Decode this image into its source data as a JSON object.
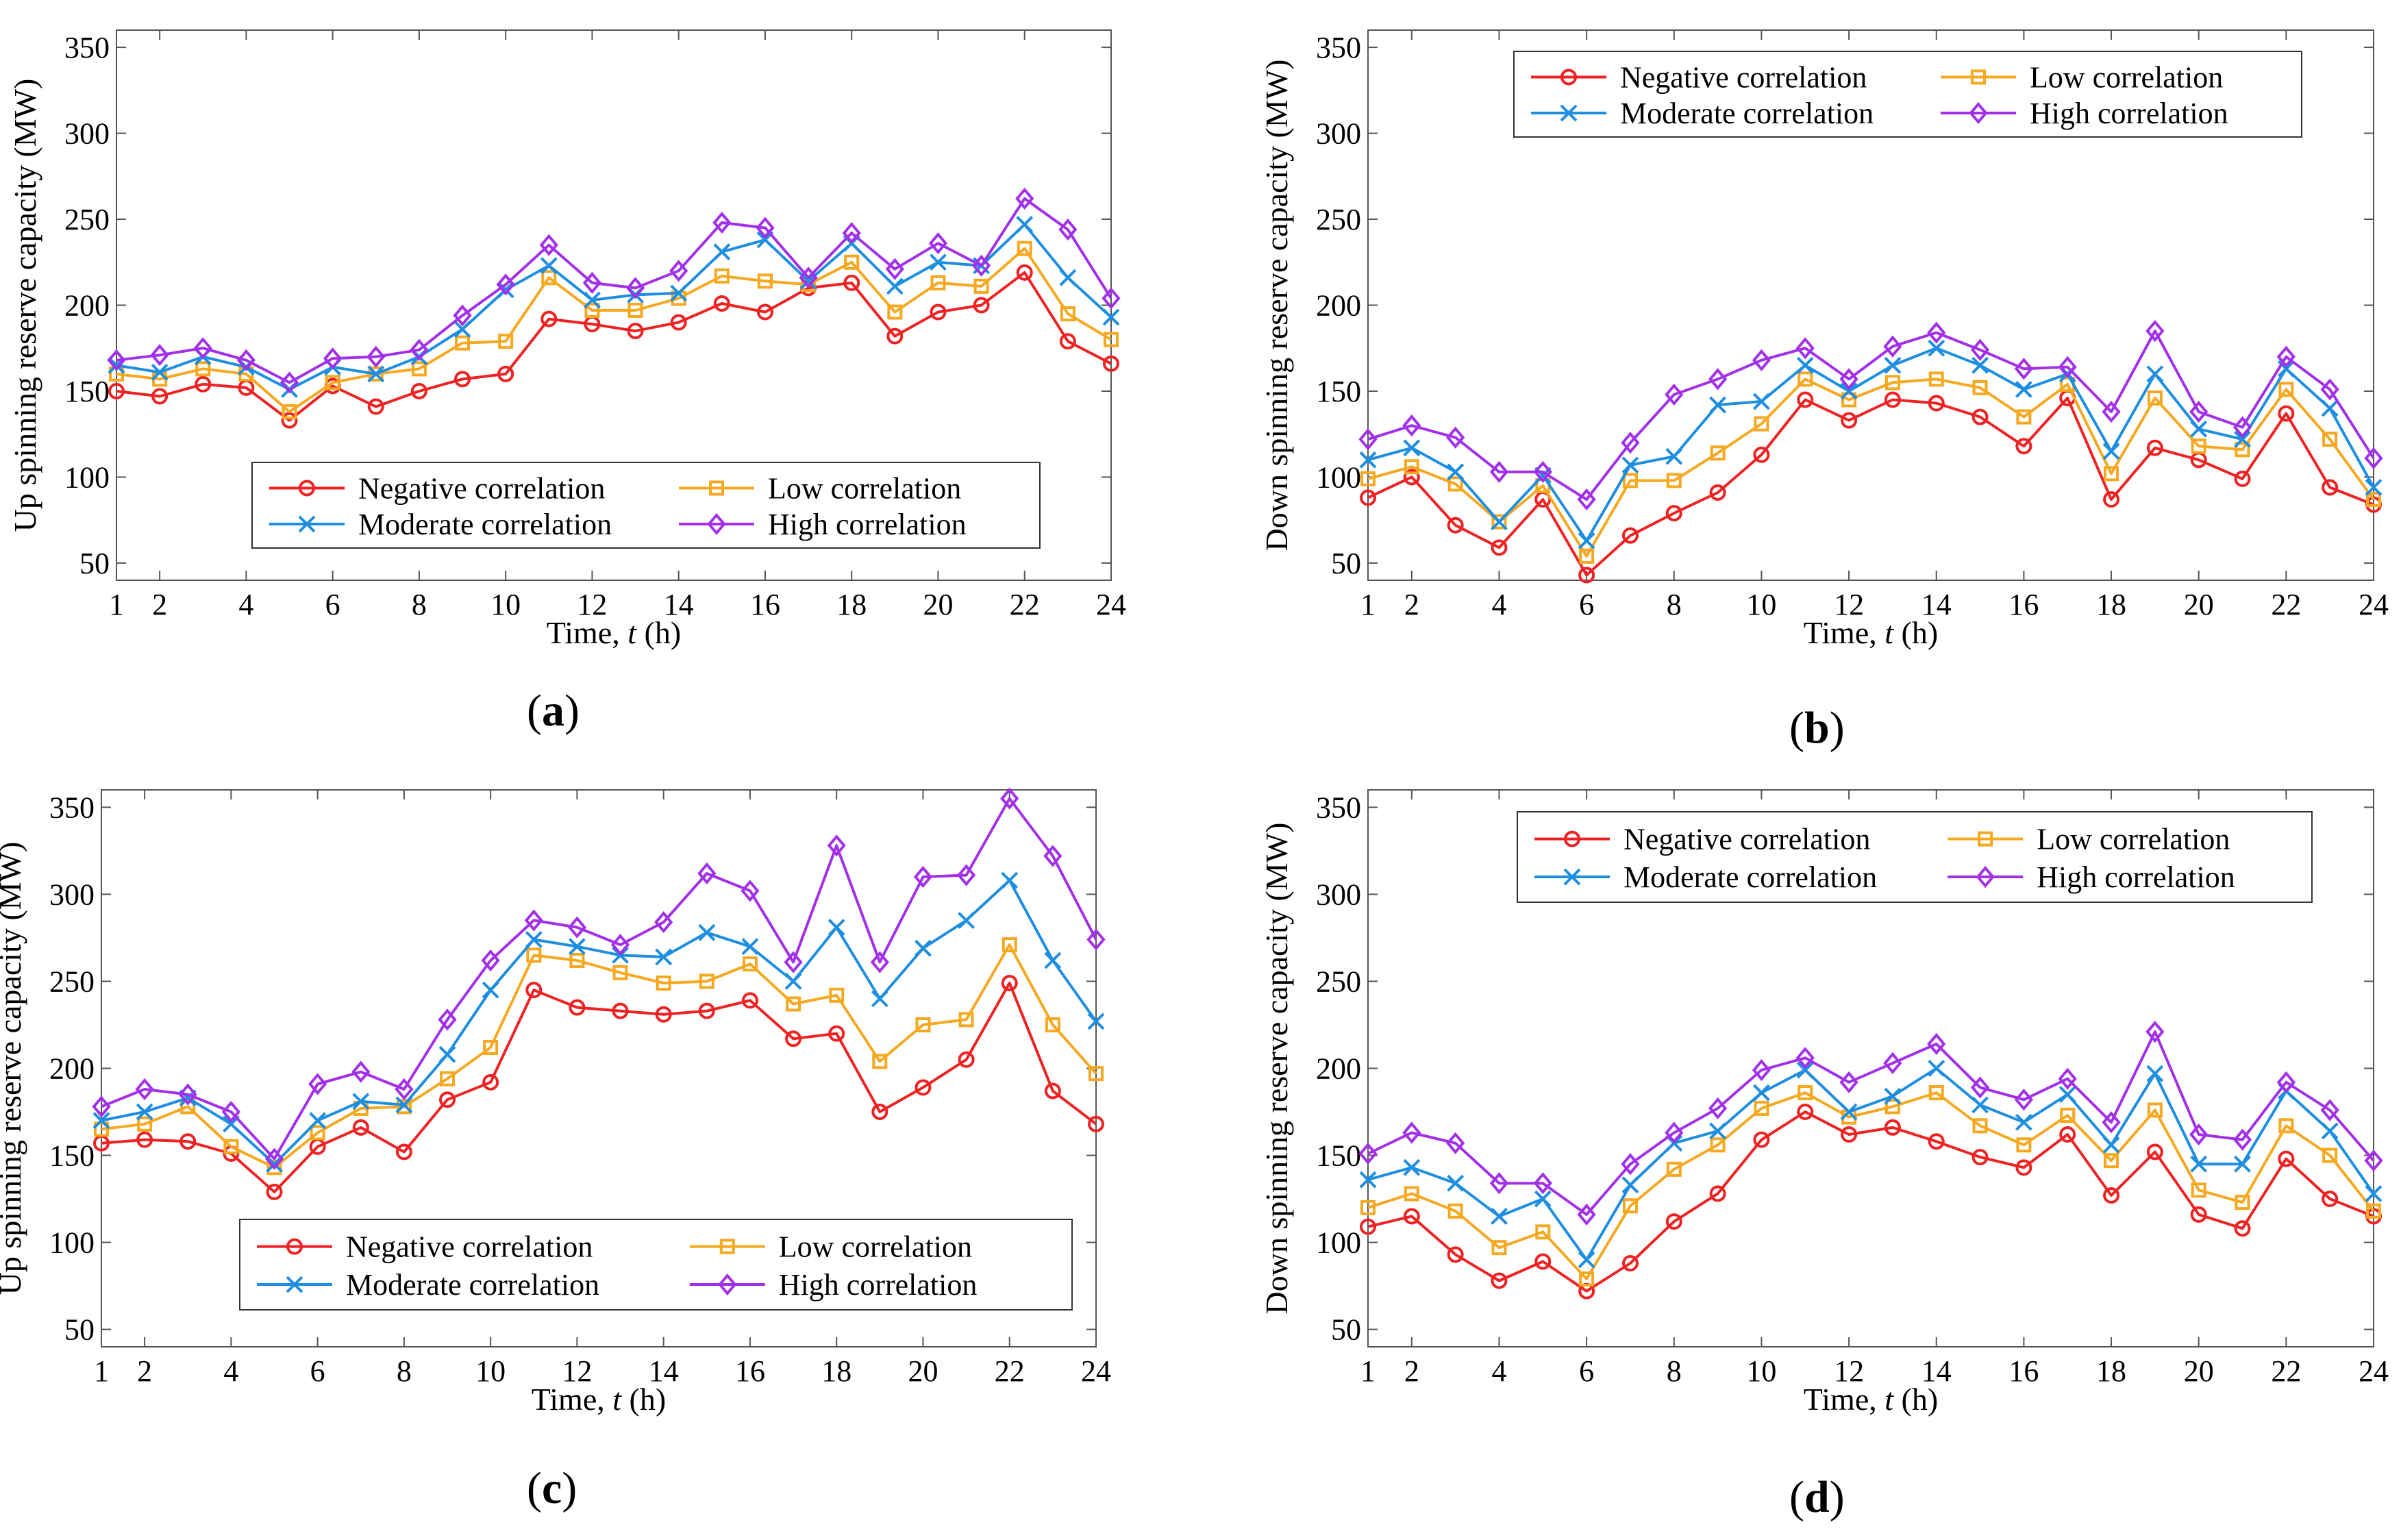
{
  "figure": {
    "panel_labels": [
      {
        "open": "(",
        "letter": "a",
        "close": ")"
      },
      {
        "open": "(",
        "letter": "b",
        "close": ")"
      },
      {
        "open": "(",
        "letter": "c",
        "close": ")"
      },
      {
        "open": "(",
        "letter": "d",
        "close": ")"
      }
    ]
  },
  "series_style": [
    {
      "name": "Negative correlation",
      "color": "#ee2222",
      "marker": "circle"
    },
    {
      "name": "Low correlation",
      "color": "#f5a820",
      "marker": "square"
    },
    {
      "name": "Moderate correlation",
      "color": "#1e8ee0",
      "marker": "x"
    },
    {
      "name": "High correlation",
      "color": "#a230e8",
      "marker": "diamond"
    }
  ],
  "chart_data": [
    {
      "type": "line",
      "panel": "a",
      "xlabel": "Time, t (h)",
      "ylabel": "Up spinning reserve capacity (MW)",
      "xlim": [
        1,
        24
      ],
      "ylim": [
        40,
        360
      ],
      "xticks": [
        1,
        2,
        4,
        6,
        8,
        10,
        12,
        14,
        16,
        18,
        20,
        22,
        24
      ],
      "yticks": [
        50,
        100,
        150,
        200,
        250,
        300,
        350
      ],
      "legend_position": "bottom-right",
      "x": [
        1,
        2,
        3,
        4,
        5,
        6,
        7,
        8,
        9,
        10,
        11,
        12,
        13,
        14,
        15,
        16,
        17,
        18,
        19,
        20,
        21,
        22,
        23,
        24
      ],
      "series": [
        {
          "name": "Negative correlation",
          "values": [
            150,
            147,
            154,
            152,
            133,
            153,
            141,
            150,
            157,
            160,
            192,
            189,
            185,
            190,
            201,
            196,
            210,
            213,
            182,
            196,
            200,
            219,
            179,
            166
          ]
        },
        {
          "name": "Low correlation",
          "values": [
            160,
            157,
            163,
            160,
            138,
            155,
            160,
            163,
            178,
            179,
            216,
            197,
            197,
            204,
            217,
            214,
            212,
            225,
            196,
            213,
            211,
            233,
            195,
            180
          ]
        },
        {
          "name": "Moderate correlation",
          "values": [
            165,
            161,
            170,
            164,
            151,
            164,
            160,
            170,
            186,
            209,
            223,
            203,
            206,
            207,
            231,
            238,
            214,
            236,
            211,
            225,
            223,
            247,
            216,
            193
          ]
        },
        {
          "name": "High correlation",
          "values": [
            168,
            171,
            175,
            168,
            155,
            169,
            170,
            174,
            194,
            212,
            235,
            213,
            210,
            220,
            248,
            245,
            216,
            242,
            221,
            236,
            223,
            262,
            244,
            204
          ]
        }
      ]
    },
    {
      "type": "line",
      "panel": "b",
      "xlabel": "Time, t (h)",
      "ylabel": "Down spinning reserve capacity (MW)",
      "xlim": [
        1,
        24
      ],
      "ylim": [
        40,
        360
      ],
      "xticks": [
        1,
        2,
        4,
        6,
        8,
        10,
        12,
        14,
        16,
        18,
        20,
        22,
        24
      ],
      "yticks": [
        50,
        100,
        150,
        200,
        250,
        300,
        350
      ],
      "legend_position": "top-right",
      "x": [
        1,
        2,
        3,
        4,
        5,
        6,
        7,
        8,
        9,
        10,
        11,
        12,
        13,
        14,
        15,
        16,
        17,
        18,
        19,
        20,
        21,
        22,
        23,
        24
      ],
      "series": [
        {
          "name": "Negative correlation",
          "values": [
            88,
            100,
            72,
            59,
            87,
            43,
            66,
            79,
            91,
            113,
            145,
            133,
            145,
            143,
            135,
            118,
            146,
            87,
            117,
            110,
            99,
            137,
            94,
            84
          ]
        },
        {
          "name": "Low correlation",
          "values": [
            99,
            106,
            96,
            74,
            95,
            54,
            98,
            98,
            114,
            131,
            157,
            145,
            155,
            157,
            152,
            135,
            154,
            102,
            146,
            118,
            116,
            151,
            122,
            87
          ]
        },
        {
          "name": "Moderate correlation",
          "values": [
            110,
            117,
            103,
            74,
            101,
            63,
            107,
            112,
            142,
            144,
            165,
            150,
            165,
            175,
            165,
            151,
            160,
            115,
            160,
            128,
            122,
            163,
            140,
            94
          ]
        },
        {
          "name": "High correlation",
          "values": [
            122,
            130,
            123,
            103,
            103,
            87,
            120,
            148,
            157,
            168,
            175,
            157,
            176,
            184,
            174,
            163,
            164,
            138,
            185,
            138,
            129,
            170,
            151,
            111
          ]
        }
      ]
    },
    {
      "type": "line",
      "panel": "c",
      "xlabel": "Time, t (h)",
      "ylabel": "Up spinning reserve capacity (MW)",
      "xlim": [
        1,
        24
      ],
      "ylim": [
        40,
        360
      ],
      "xticks": [
        1,
        2,
        4,
        6,
        8,
        10,
        12,
        14,
        16,
        18,
        20,
        22,
        24
      ],
      "yticks": [
        50,
        100,
        150,
        200,
        250,
        300,
        350
      ],
      "legend_position": "bottom-right",
      "x": [
        1,
        2,
        3,
        4,
        5,
        6,
        7,
        8,
        9,
        10,
        11,
        12,
        13,
        14,
        15,
        16,
        17,
        18,
        19,
        20,
        21,
        22,
        23,
        24
      ],
      "series": [
        {
          "name": "Negative correlation",
          "values": [
            157,
            159,
            158,
            151,
            129,
            155,
            166,
            152,
            182,
            192,
            245,
            235,
            233,
            231,
            233,
            239,
            217,
            220,
            175,
            189,
            205,
            249,
            187,
            168
          ]
        },
        {
          "name": "Low correlation",
          "values": [
            165,
            168,
            178,
            155,
            143,
            163,
            177,
            178,
            194,
            212,
            265,
            262,
            255,
            249,
            250,
            260,
            237,
            242,
            204,
            225,
            228,
            271,
            225,
            197
          ]
        },
        {
          "name": "Moderate correlation",
          "values": [
            170,
            175,
            183,
            168,
            145,
            170,
            181,
            179,
            208,
            245,
            274,
            270,
            265,
            264,
            278,
            270,
            250,
            281,
            240,
            269,
            285,
            308,
            262,
            227
          ]
        },
        {
          "name": "High correlation",
          "values": [
            178,
            188,
            185,
            175,
            148,
            191,
            198,
            188,
            228,
            262,
            285,
            281,
            271,
            284,
            312,
            302,
            261,
            328,
            261,
            310,
            311,
            355,
            322,
            274
          ]
        }
      ]
    },
    {
      "type": "line",
      "panel": "d",
      "xlabel": "Time, t (h)",
      "ylabel": "Down spinning reserve capacity (MW)",
      "xlim": [
        1,
        24
      ],
      "ylim": [
        40,
        360
      ],
      "xticks": [
        1,
        2,
        4,
        6,
        8,
        10,
        12,
        14,
        16,
        18,
        20,
        22,
        24
      ],
      "yticks": [
        50,
        100,
        150,
        200,
        250,
        300,
        350
      ],
      "legend_position": "top-right",
      "x": [
        1,
        2,
        3,
        4,
        5,
        6,
        7,
        8,
        9,
        10,
        11,
        12,
        13,
        14,
        15,
        16,
        17,
        18,
        19,
        20,
        21,
        22,
        23,
        24
      ],
      "series": [
        {
          "name": "Negative correlation",
          "values": [
            109,
            115,
            93,
            78,
            89,
            72,
            88,
            112,
            128,
            159,
            175,
            162,
            166,
            158,
            149,
            143,
            162,
            127,
            152,
            116,
            108,
            148,
            125,
            115
          ]
        },
        {
          "name": "Low correlation",
          "values": [
            120,
            128,
            118,
            97,
            106,
            79,
            121,
            142,
            156,
            177,
            186,
            172,
            178,
            186,
            167,
            156,
            173,
            147,
            176,
            130,
            123,
            167,
            150,
            118
          ]
        },
        {
          "name": "Moderate correlation",
          "values": [
            136,
            143,
            134,
            115,
            125,
            90,
            133,
            157,
            164,
            186,
            199,
            175,
            184,
            200,
            179,
            169,
            185,
            156,
            197,
            145,
            145,
            187,
            164,
            128
          ]
        },
        {
          "name": "High correlation",
          "values": [
            151,
            163,
            157,
            134,
            134,
            116,
            145,
            163,
            177,
            199,
            206,
            192,
            203,
            214,
            189,
            182,
            194,
            169,
            221,
            162,
            159,
            192,
            176,
            147
          ]
        }
      ]
    }
  ]
}
